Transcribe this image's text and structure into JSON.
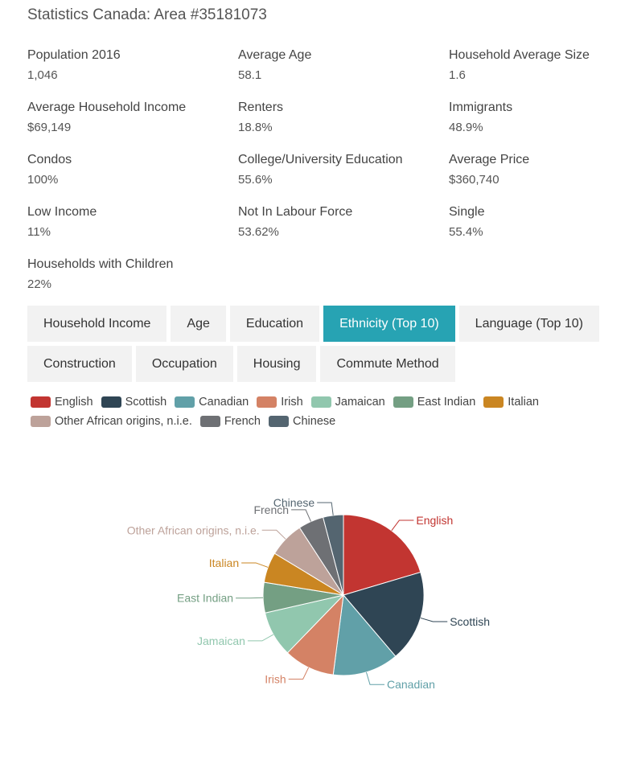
{
  "title": "Statistics Canada: Area #35181073",
  "stats": [
    {
      "label": "Population 2016",
      "value": "1,046"
    },
    {
      "label": "Average Age",
      "value": "58.1"
    },
    {
      "label": "Household Average Size",
      "value": "1.6"
    },
    {
      "label": "Average Household Income",
      "value": "$69,149"
    },
    {
      "label": "Renters",
      "value": "18.8%"
    },
    {
      "label": "Immigrants",
      "value": "48.9%"
    },
    {
      "label": "Condos",
      "value": "100%"
    },
    {
      "label": "College/University Education",
      "value": "55.6%"
    },
    {
      "label": "Average Price",
      "value": "$360,740"
    },
    {
      "label": "Low Income",
      "value": "11%"
    },
    {
      "label": "Not In Labour Force",
      "value": "53.62%"
    },
    {
      "label": "Single",
      "value": "55.4%"
    },
    {
      "label": "Households with Children",
      "value": "22%"
    }
  ],
  "tabs": [
    {
      "label": "Household Income",
      "active": false
    },
    {
      "label": "Age",
      "active": false
    },
    {
      "label": "Education",
      "active": false
    },
    {
      "label": "Ethnicity (Top 10)",
      "active": true
    },
    {
      "label": "Language (Top 10)",
      "active": false
    },
    {
      "label": "Construction",
      "active": false
    },
    {
      "label": "Occupation",
      "active": false
    },
    {
      "label": "Housing",
      "active": false
    },
    {
      "label": "Commute Method",
      "active": false
    }
  ],
  "colors": {
    "accent": "#27a3b3",
    "series": [
      "#c23531",
      "#2f4554",
      "#61a0a8",
      "#d48265",
      "#91c7ae",
      "#749f83",
      "#ca8622",
      "#bda29a",
      "#6e7074",
      "#546570"
    ]
  },
  "chart_data": {
    "type": "pie",
    "categories": [
      "English",
      "Scottish",
      "Canadian",
      "Irish",
      "Jamaican",
      "East Indian",
      "Italian",
      "Other African origins, n.i.e.",
      "French",
      "Chinese"
    ],
    "values": [
      20,
      18,
      13,
      10,
      9,
      6,
      6,
      7,
      5,
      4
    ],
    "legend_position": "top-left"
  }
}
